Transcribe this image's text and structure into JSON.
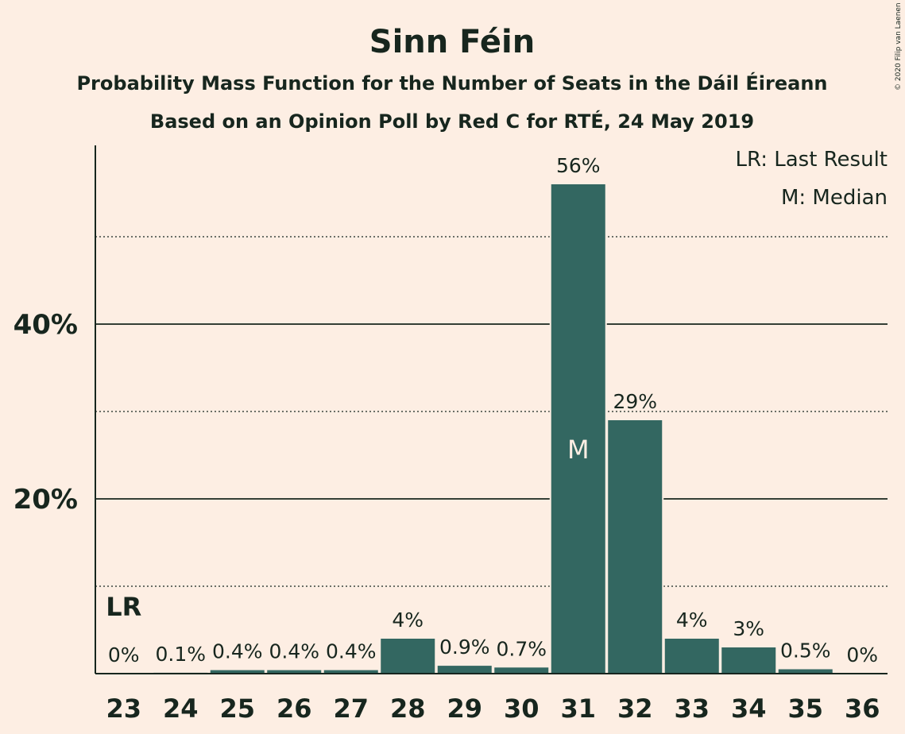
{
  "chart_data": {
    "type": "bar",
    "title": "Sinn Féin",
    "subtitles": [
      "Probability Mass Function for the Number of Seats in the Dáil Éireann",
      "Based on an Opinion Poll by Red C for RTÉ, 24 May 2019"
    ],
    "categories": [
      "23",
      "24",
      "25",
      "26",
      "27",
      "28",
      "29",
      "30",
      "31",
      "32",
      "33",
      "34",
      "35",
      "36"
    ],
    "values": [
      0,
      0.1,
      0.4,
      0.4,
      0.4,
      4,
      0.9,
      0.7,
      56,
      29,
      4,
      3,
      0.5,
      0
    ],
    "value_labels": [
      "0%",
      "0.1%",
      "0.4%",
      "0.4%",
      "0.4%",
      "4%",
      "0.9%",
      "0.7%",
      "56%",
      "29%",
      "4%",
      "3%",
      "0.5%",
      "0%"
    ],
    "ylim": [
      0,
      60
    ],
    "yticks": [
      20,
      40
    ],
    "ytick_labels": [
      "20%",
      "40%"
    ],
    "minor_gridlines": [
      10,
      30,
      50
    ],
    "last_result_category": "23",
    "last_result_marker": "LR",
    "median_category": "31",
    "median_marker": "M",
    "legend": [
      "LR: Last Result",
      "M: Median"
    ],
    "legend_position": "top-right",
    "colors": {
      "bar": "#336761",
      "background": "#fdeee3",
      "text": "#17261e"
    }
  },
  "copyright": "© 2020 Filip van Laenen"
}
